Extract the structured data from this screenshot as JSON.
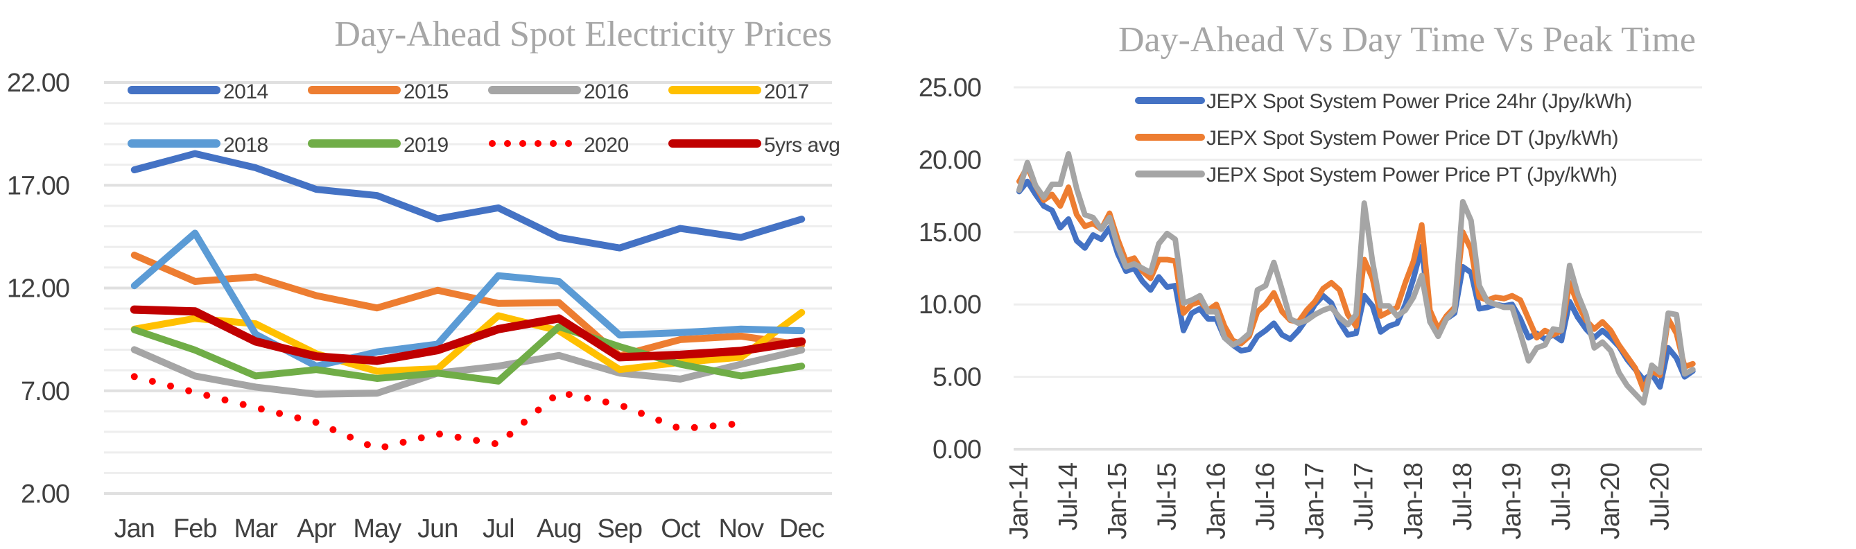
{
  "chart_data": [
    {
      "type": "line",
      "title": "Day-Ahead Spot Electricity Prices",
      "xlabel": "",
      "ylabel": "",
      "categories": [
        "Jan",
        "Feb",
        "Mar",
        "Apr",
        "May",
        "Jun",
        "Jul",
        "Aug",
        "Sep",
        "Oct",
        "Nov",
        "Dec"
      ],
      "ylim": [
        2,
        22
      ],
      "yticks": [
        "2.00",
        "7.00",
        "12.00",
        "17.00",
        "22.00"
      ],
      "ytick_values": [
        2,
        7,
        12,
        17,
        22
      ],
      "minor_grid_step": 1,
      "grid": true,
      "legend_position": "top",
      "series": [
        {
          "name": "2014",
          "color": "#4472c4",
          "dash": "solid",
          "values": [
            17.75,
            18.54,
            17.85,
            16.8,
            16.5,
            15.37,
            15.9,
            14.46,
            13.95,
            14.9,
            14.46,
            15.35
          ]
        },
        {
          "name": "2015",
          "color": "#ed7d31",
          "dash": "solid",
          "values": [
            13.6,
            12.32,
            12.54,
            11.63,
            11.03,
            11.89,
            11.25,
            11.29,
            8.7,
            9.49,
            9.66,
            9.23
          ]
        },
        {
          "name": "2016",
          "color": "#a5a5a5",
          "dash": "solid",
          "values": [
            9.0,
            7.72,
            7.18,
            6.83,
            6.88,
            7.86,
            8.2,
            8.72,
            7.86,
            7.57,
            8.29,
            8.98
          ]
        },
        {
          "name": "2017",
          "color": "#ffc000",
          "dash": "solid",
          "values": [
            10.0,
            10.52,
            10.26,
            8.8,
            7.95,
            8.07,
            10.65,
            9.92,
            8.03,
            8.38,
            8.63,
            10.81
          ]
        },
        {
          "name": "2018",
          "color": "#5b9bd5",
          "dash": "solid",
          "values": [
            12.11,
            14.67,
            9.75,
            8.2,
            8.89,
            9.27,
            12.6,
            12.32,
            9.71,
            9.83,
            10.0,
            9.92
          ]
        },
        {
          "name": "2019",
          "color": "#70ad47",
          "dash": "solid",
          "values": [
            9.97,
            8.98,
            7.72,
            8.03,
            7.6,
            7.86,
            7.47,
            10.12,
            9.15,
            8.29,
            7.72,
            8.2
          ]
        },
        {
          "name": "2020",
          "color": "#ff0000",
          "dash": "dotted",
          "values": [
            7.69,
            6.92,
            6.18,
            5.46,
            4.18,
            4.91,
            4.4,
            6.92,
            6.32,
            5.15,
            5.41,
            null
          ]
        },
        {
          "name": "5yrs avg",
          "color": "#c00000",
          "dash": "solid",
          "values": [
            10.95,
            10.86,
            9.4,
            8.67,
            8.46,
            8.98,
            10.0,
            10.52,
            8.63,
            8.75,
            8.94,
            9.4
          ]
        }
      ]
    },
    {
      "type": "line",
      "title": "Day-Ahead Vs Day Time Vs Peak Time",
      "xlabel": "",
      "ylabel": "",
      "x_start": "Jan-14",
      "x_frequency": "monthly",
      "x_end": "Nov-20",
      "xticks": [
        "Jan-14",
        "Jul-14",
        "Jan-15",
        "Jul-15",
        "Jan-16",
        "Jul-16",
        "Jan-17",
        "Jul-17",
        "Jan-18",
        "Jul-18",
        "Jan-19",
        "Jul-19",
        "Jan-20",
        "Jul-20"
      ],
      "ylim": [
        0,
        25
      ],
      "yticks": [
        "0.00",
        "5.00",
        "10.00",
        "15.00",
        "20.00",
        "25.00"
      ],
      "ytick_values": [
        0,
        5,
        10,
        15,
        20,
        25
      ],
      "grid": true,
      "legend_position": "top-right",
      "series": [
        {
          "name": "JEPX Spot System Power Price 24hr (Jpy/kWh)",
          "color": "#4472c4",
          "values": [
            17.8,
            18.5,
            17.6,
            16.8,
            16.5,
            15.3,
            15.9,
            14.4,
            13.9,
            14.8,
            14.5,
            15.3,
            13.5,
            12.3,
            12.5,
            11.6,
            11.0,
            11.9,
            11.2,
            11.3,
            8.2,
            9.4,
            9.7,
            9.0,
            9.0,
            7.7,
            7.2,
            6.8,
            6.9,
            7.8,
            8.2,
            8.7,
            7.9,
            7.6,
            8.2,
            9.0,
            10.0,
            10.6,
            10.1,
            8.8,
            7.9,
            8.0,
            10.6,
            9.9,
            8.1,
            8.5,
            8.7,
            10.0,
            11.8,
            14.0,
            8.8,
            8.0,
            9.0,
            9.4,
            12.6,
            12.2,
            9.7,
            9.8,
            10.0,
            9.9,
            10.0,
            9.0,
            7.7,
            8.0,
            7.6,
            7.9,
            7.5,
            10.2,
            9.1,
            8.3,
            7.7,
            8.2,
            7.7,
            7.1,
            6.2,
            5.5,
            4.8,
            5.2,
            4.3,
            7.0,
            6.3,
            5.0,
            5.4
          ]
        },
        {
          "name": "JEPX Spot System Power Price DT (Jpy/kWh)",
          "color": "#ed7d31",
          "values": [
            18.5,
            19.5,
            18.2,
            17.2,
            17.6,
            16.8,
            18.1,
            16.2,
            15.4,
            15.6,
            15.2,
            16.3,
            14.5,
            13.0,
            13.2,
            12.3,
            11.8,
            13.1,
            13.1,
            13.0,
            9.4,
            10.0,
            10.2,
            9.6,
            10.0,
            8.5,
            7.5,
            7.3,
            7.8,
            9.5,
            10.0,
            10.8,
            9.5,
            8.9,
            8.8,
            9.6,
            10.2,
            11.1,
            11.5,
            11.0,
            9.3,
            8.5,
            13.1,
            11.8,
            9.2,
            9.5,
            9.8,
            11.5,
            13.0,
            15.5,
            9.6,
            8.3,
            9.2,
            9.8,
            15.0,
            13.8,
            10.5,
            10.3,
            10.5,
            10.4,
            10.6,
            10.3,
            9.0,
            7.7,
            8.2,
            7.9,
            8.2,
            11.5,
            10.0,
            8.9,
            8.3,
            8.8,
            8.2,
            7.2,
            6.4,
            5.6,
            4.1,
            5.4,
            5.1,
            9.0,
            8.0,
            5.7,
            5.9
          ]
        },
        {
          "name": "JEPX Spot System Power Price PT (Jpy/kWh)",
          "color": "#a5a5a5",
          "values": [
            17.9,
            19.8,
            18.2,
            17.4,
            18.3,
            18.3,
            20.4,
            18.0,
            16.2,
            16.0,
            15.2,
            16.0,
            14.0,
            12.6,
            12.8,
            12.5,
            12.2,
            14.2,
            14.9,
            14.5,
            10.1,
            10.3,
            10.6,
            9.5,
            9.5,
            7.7,
            7.2,
            7.5,
            8.0,
            11.0,
            11.3,
            12.9,
            11.0,
            9.0,
            8.7,
            8.9,
            9.3,
            9.6,
            9.8,
            9.1,
            8.6,
            9.3,
            17.0,
            13.0,
            9.9,
            9.9,
            9.2,
            9.6,
            10.5,
            12.0,
            8.8,
            7.8,
            9.0,
            9.6,
            17.1,
            15.8,
            11.3,
            10.2,
            10.0,
            9.8,
            9.8,
            8.0,
            6.1,
            7.0,
            7.2,
            8.3,
            8.2,
            12.7,
            10.7,
            9.3,
            7.0,
            7.4,
            6.8,
            5.3,
            4.4,
            3.8,
            3.2,
            5.8,
            5.3,
            9.4,
            9.3,
            5.2,
            5.5
          ]
        }
      ]
    }
  ]
}
